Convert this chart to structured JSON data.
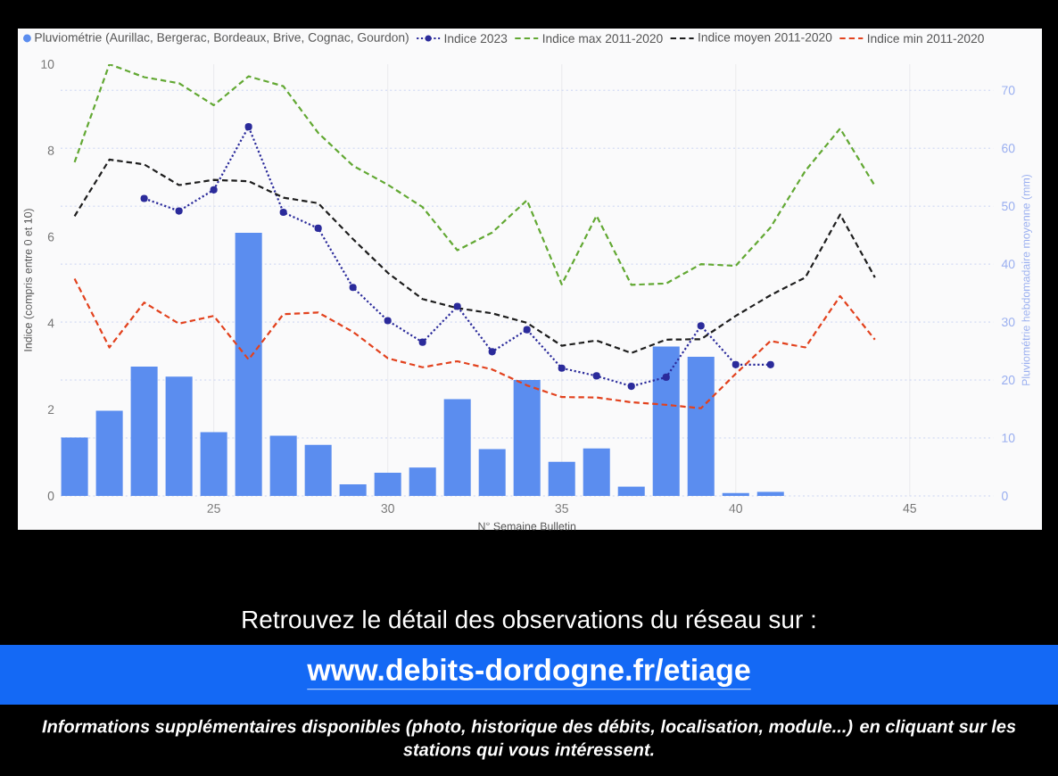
{
  "chart_data": {
    "type": "line",
    "xlabel": "N° Semaine Bulletin",
    "ylabel": "Indice (compris entre 0 et 10)",
    "y2label": "Pluviométrie hebdomadaire moyenne (mm)",
    "xlim": [
      20.6,
      47.4
    ],
    "xticks": [
      25,
      30,
      35,
      40,
      45
    ],
    "ylim": [
      0,
      10
    ],
    "yticks": [
      0,
      2,
      4,
      6,
      8,
      10
    ],
    "y2lim": [
      0,
      74.5
    ],
    "y2ticks": [
      0,
      10,
      20,
      30,
      40,
      50,
      60,
      70
    ],
    "grid": true,
    "legend": "top",
    "series": [
      {
        "name": "Pluviométrie (Aurillac, Bergerac, Bordeaux, Brive, Cognac, Gourdon)",
        "type": "bar",
        "axis": "y2",
        "color": "#5b8def",
        "x": [
          21,
          22,
          23,
          24,
          25,
          26,
          27,
          28,
          29,
          30,
          31,
          32,
          33,
          34,
          35,
          36,
          37,
          38,
          39,
          40,
          41
        ],
        "values": [
          10.1,
          14.7,
          22.3,
          20.6,
          11.0,
          45.4,
          10.4,
          8.8,
          2.0,
          4.0,
          4.9,
          16.7,
          8.1,
          20.0,
          5.9,
          8.2,
          1.6,
          25.8,
          24.0,
          0.5,
          0.7
        ]
      },
      {
        "name": "Indice 2023",
        "color": "#2b2b9b",
        "marker": "circle",
        "line_style": "dotted",
        "x": [
          23,
          24,
          25,
          26,
          27,
          28,
          29,
          30,
          31,
          32,
          33,
          34,
          35,
          36,
          37,
          38,
          39,
          40,
          41
        ],
        "values": [
          6.89,
          6.6,
          7.09,
          8.55,
          6.57,
          6.2,
          4.83,
          4.06,
          3.56,
          4.39,
          3.34,
          3.85,
          2.96,
          2.78,
          2.54,
          2.75,
          3.94,
          3.04,
          3.04
        ]
      },
      {
        "name": "Indice max 2011-2020",
        "color": "#62a833",
        "line_style": "dashed",
        "x": [
          21,
          22,
          23,
          24,
          25,
          26,
          27,
          28,
          29,
          30,
          31,
          32,
          33,
          34,
          35,
          36,
          37,
          38,
          39,
          40,
          41,
          42,
          43,
          44
        ],
        "values": [
          7.73,
          10.0,
          9.7,
          9.56,
          9.05,
          9.72,
          9.49,
          8.41,
          7.65,
          7.21,
          6.69,
          5.69,
          6.1,
          6.85,
          4.9,
          6.49,
          4.89,
          4.92,
          5.37,
          5.33,
          6.22,
          7.53,
          8.51,
          7.18
        ]
      },
      {
        "name": "Indice moyen 2011-2020",
        "color": "#1e1e1e",
        "line_style": "dashed",
        "x": [
          21,
          22,
          23,
          24,
          25,
          26,
          27,
          28,
          29,
          30,
          31,
          32,
          33,
          34,
          35,
          36,
          37,
          38,
          39,
          40,
          41,
          42,
          43,
          44
        ],
        "values": [
          6.48,
          7.79,
          7.68,
          7.2,
          7.32,
          7.29,
          6.91,
          6.78,
          5.95,
          5.17,
          4.56,
          4.35,
          4.23,
          4.01,
          3.48,
          3.6,
          3.31,
          3.62,
          3.63,
          4.17,
          4.65,
          5.06,
          6.52,
          5.06
        ]
      },
      {
        "name": "Indice min 2011-2020",
        "color": "#e2421e",
        "line_style": "dashed",
        "x": [
          21,
          22,
          23,
          24,
          25,
          26,
          27,
          28,
          29,
          30,
          31,
          32,
          33,
          34,
          35,
          36,
          37,
          38,
          39,
          40,
          41,
          42,
          43,
          44
        ],
        "values": [
          5.03,
          3.44,
          4.48,
          3.99,
          4.17,
          3.16,
          4.21,
          4.25,
          3.8,
          3.19,
          2.98,
          3.12,
          2.93,
          2.56,
          2.29,
          2.28,
          2.17,
          2.11,
          2.03,
          2.83,
          3.59,
          3.44,
          4.63,
          3.62
        ]
      }
    ],
    "annotations": [
      "Retrouvez le détail des observations du réseau sur :",
      "www.debits-dordogne.fr/etiage",
      "Informations supplémentaires disponibles (photo, historique des débits, localisation, module...) en cliquant sur les stations qui vous intéressent."
    ]
  }
}
